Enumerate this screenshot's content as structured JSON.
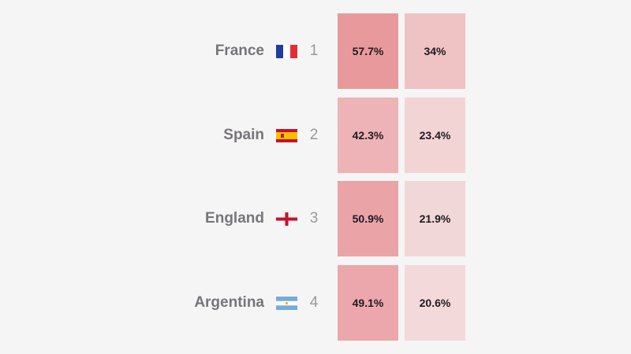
{
  "chart_data": {
    "type": "table",
    "rows": [
      {
        "team": "France",
        "flag": "france-flag",
        "rank": "1",
        "values": [
          "57.7%",
          "34%"
        ],
        "numeric": [
          57.7,
          34.0
        ]
      },
      {
        "team": "Spain",
        "flag": "spain-flag",
        "rank": "2",
        "values": [
          "42.3%",
          "23.4%"
        ],
        "numeric": [
          42.3,
          23.4
        ]
      },
      {
        "team": "England",
        "flag": "england-flag",
        "rank": "3",
        "values": [
          "50.9%",
          "21.9%"
        ],
        "numeric": [
          50.9,
          21.9
        ]
      },
      {
        "team": "Argentina",
        "flag": "argentina-flag",
        "rank": "4",
        "values": [
          "49.1%",
          "20.6%"
        ],
        "numeric": [
          49.1,
          20.6
        ]
      }
    ]
  },
  "colors": {
    "background": "#f5f5f5",
    "heat_high": "#e8989c",
    "heat_low": "#f3dadb",
    "team_text": "#77747a",
    "rank_text": "#9a979d",
    "value_text": "#1f1b22"
  }
}
